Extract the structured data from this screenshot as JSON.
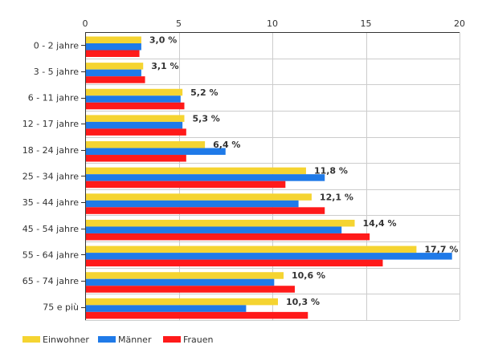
{
  "chart_data": {
    "type": "bar",
    "orientation": "horizontal",
    "categories": [
      "0 - 2 jahre",
      "3 - 5 jahre",
      "6 - 11 jahre",
      "12 - 17 jahre",
      "18 - 24 jahre",
      "25 - 34 jahre",
      "35 - 44 jahre",
      "45 - 54 jahre",
      "55 - 64 jahre",
      "65 - 74 jahre",
      "75 e più"
    ],
    "series": [
      {
        "name": "Einwohner",
        "color": "#f5d431",
        "values": [
          3.0,
          3.1,
          5.2,
          5.3,
          6.4,
          11.8,
          12.1,
          14.4,
          17.7,
          10.6,
          10.3
        ]
      },
      {
        "name": "Männer",
        "color": "#1f7ae8",
        "values": [
          3.0,
          3.0,
          5.1,
          5.2,
          7.5,
          12.8,
          11.4,
          13.7,
          19.6,
          10.1,
          8.6
        ]
      },
      {
        "name": "Frauen",
        "color": "#ff1a1a",
        "values": [
          2.9,
          3.2,
          5.3,
          5.4,
          5.4,
          10.7,
          12.8,
          15.2,
          15.9,
          11.2,
          11.9
        ]
      }
    ],
    "data_labels": [
      "3,0 %",
      "3,1 %",
      "5,2 %",
      "5,3 %",
      "6,4 %",
      "11,8 %",
      "12,1 %",
      "14,4 %",
      "17,7 %",
      "10,6 %",
      "10,3 %"
    ],
    "x_ticks": [
      "0",
      "5",
      "10",
      "15",
      "20"
    ],
    "xlim": [
      0,
      20
    ],
    "grid": true,
    "legend_position": "bottom-left",
    "title": "",
    "xlabel": "",
    "ylabel": ""
  }
}
